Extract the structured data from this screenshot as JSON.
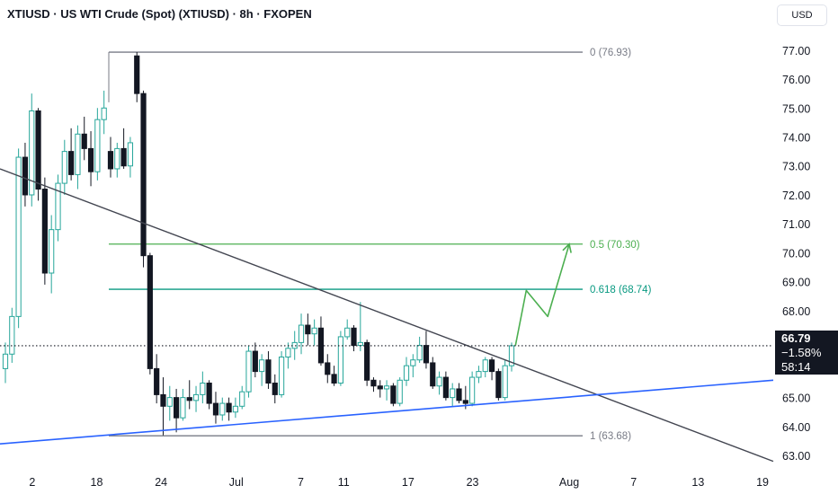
{
  "header": {
    "title": "XTIUSD · US WTI Crude (Spot) (XTIUSD) · 8h · FXOPEN",
    "currency": "USD"
  },
  "price_badge": {
    "price": "66.79",
    "change": "−1.58%",
    "countdown": "58:14"
  },
  "colors": {
    "up": "#26a69a",
    "down": "#131722",
    "trendline": "#434651",
    "support": "#2962ff",
    "fib_green": "#4caf50",
    "fib_teal": "#089981",
    "fib_gray": "#787b86",
    "projection": "#4caf50"
  },
  "chart_data": {
    "type": "candlestick",
    "symbol": "XTIUSD",
    "timeframe": "8h",
    "ylim": [
      62.6,
      77.8
    ],
    "y_ticks": [
      "77.00",
      "76.00",
      "75.00",
      "74.00",
      "73.00",
      "72.00",
      "71.00",
      "70.00",
      "69.00",
      "68.00",
      "67.00",
      "66.00",
      "65.00",
      "64.00",
      "63.00"
    ],
    "x_ticks": [
      {
        "label": "2",
        "date": "2025-06-12"
      },
      {
        "label": "18",
        "date": "2025-06-18"
      },
      {
        "label": "24",
        "date": "2025-06-24"
      },
      {
        "label": "Jul",
        "date": "2025-07-01"
      },
      {
        "label": "7",
        "date": "2025-07-07"
      },
      {
        "label": "11",
        "date": "2025-07-11"
      },
      {
        "label": "17",
        "date": "2025-07-17"
      },
      {
        "label": "23",
        "date": "2025-07-23"
      },
      {
        "label": "Aug",
        "date": "2025-08-01"
      },
      {
        "label": "7",
        "date": "2025-08-07"
      },
      {
        "label": "13",
        "date": "2025-08-13"
      },
      {
        "label": "19",
        "date": "2025-08-19"
      }
    ],
    "fib_levels": [
      {
        "label": "0 (76.93)",
        "value": 76.93
      },
      {
        "label": "0.5 (70.30)",
        "value": 70.3
      },
      {
        "label": "0.618 (68.74)",
        "value": 68.74
      },
      {
        "label": "1 (63.68)",
        "value": 63.68
      }
    ],
    "last_price": 66.79,
    "candles": [
      [
        66.0,
        66.9,
        65.5,
        66.5
      ],
      [
        66.5,
        68.1,
        66.2,
        67.8
      ],
      [
        67.8,
        73.6,
        67.4,
        73.3
      ],
      [
        73.3,
        73.8,
        71.6,
        72.0
      ],
      [
        72.0,
        75.5,
        71.6,
        74.9
      ],
      [
        74.9,
        75.0,
        71.8,
        72.2
      ],
      [
        72.2,
        72.6,
        68.9,
        69.3
      ],
      [
        69.3,
        71.3,
        68.6,
        70.8
      ],
      [
        70.8,
        72.7,
        70.4,
        72.4
      ],
      [
        72.4,
        73.9,
        72.0,
        73.5
      ],
      [
        73.5,
        74.3,
        72.5,
        72.7
      ],
      [
        72.7,
        74.4,
        72.2,
        74.1
      ],
      [
        74.1,
        74.7,
        73.2,
        73.6
      ],
      [
        73.6,
        74.2,
        72.3,
        72.8
      ],
      [
        72.8,
        75.0,
        72.5,
        74.6
      ],
      [
        74.6,
        75.6,
        74.1,
        75.0
      ],
      [
        73.5,
        74.0,
        72.6,
        72.9
      ],
      [
        72.9,
        73.8,
        72.6,
        73.6
      ],
      [
        73.6,
        74.3,
        72.9,
        73.0
      ],
      [
        73.0,
        74.0,
        72.6,
        73.8
      ],
      [
        76.8,
        76.93,
        75.2,
        75.5
      ],
      [
        75.5,
        75.6,
        69.5,
        69.9
      ],
      [
        69.9,
        70.0,
        65.8,
        66.0
      ],
      [
        66.0,
        66.5,
        64.8,
        65.1
      ],
      [
        65.1,
        65.7,
        63.7,
        64.7
      ],
      [
        64.7,
        65.4,
        64.2,
        65.0
      ],
      [
        65.0,
        65.3,
        63.8,
        64.3
      ],
      [
        64.3,
        65.3,
        64.2,
        65.0
      ],
      [
        65.0,
        65.6,
        64.6,
        64.9
      ],
      [
        64.9,
        65.4,
        64.5,
        65.1
      ],
      [
        65.1,
        65.9,
        64.8,
        65.5
      ],
      [
        65.5,
        65.6,
        64.6,
        64.8
      ],
      [
        64.8,
        65.2,
        64.1,
        64.4
      ],
      [
        64.4,
        65.0,
        64.2,
        64.8
      ],
      [
        64.8,
        65.0,
        64.2,
        64.5
      ],
      [
        64.5,
        65.0,
        64.3,
        64.7
      ],
      [
        64.7,
        65.4,
        64.6,
        65.2
      ],
      [
        65.2,
        66.8,
        65.0,
        66.6
      ],
      [
        66.6,
        66.9,
        65.7,
        65.9
      ],
      [
        65.9,
        66.5,
        65.4,
        66.3
      ],
      [
        66.3,
        66.6,
        65.3,
        65.5
      ],
      [
        65.5,
        65.8,
        64.8,
        65.1
      ],
      [
        65.1,
        66.6,
        65.0,
        66.4
      ],
      [
        66.4,
        66.9,
        66.0,
        66.7
      ],
      [
        66.7,
        67.3,
        66.3,
        66.9
      ],
      [
        66.9,
        67.9,
        66.5,
        67.5
      ],
      [
        67.5,
        67.9,
        66.8,
        67.2
      ],
      [
        67.2,
        67.7,
        66.8,
        67.4
      ],
      [
        67.4,
        67.8,
        66.1,
        66.2
      ],
      [
        66.2,
        66.5,
        65.5,
        65.8
      ],
      [
        65.8,
        66.1,
        65.4,
        65.5
      ],
      [
        65.5,
        67.3,
        65.4,
        67.1
      ],
      [
        67.1,
        67.7,
        67.0,
        67.4
      ],
      [
        67.4,
        67.5,
        66.6,
        66.8
      ],
      [
        66.8,
        68.3,
        66.6,
        66.9
      ],
      [
        66.9,
        67.0,
        65.4,
        65.6
      ],
      [
        65.6,
        65.7,
        65.2,
        65.4
      ],
      [
        65.4,
        65.6,
        65.0,
        65.3
      ],
      [
        65.3,
        65.6,
        64.9,
        65.4
      ],
      [
        65.4,
        65.5,
        64.7,
        64.8
      ],
      [
        64.8,
        65.7,
        64.7,
        65.6
      ],
      [
        65.6,
        66.4,
        65.4,
        66.1
      ],
      [
        66.1,
        66.5,
        65.7,
        66.3
      ],
      [
        66.3,
        67.1,
        66.2,
        66.8
      ],
      [
        66.8,
        67.3,
        66.0,
        66.2
      ],
      [
        66.2,
        66.4,
        65.3,
        65.4
      ],
      [
        65.4,
        65.9,
        65.1,
        65.7
      ],
      [
        65.7,
        65.9,
        64.9,
        65.0
      ],
      [
        65.0,
        65.5,
        64.7,
        65.3
      ],
      [
        65.3,
        65.5,
        64.8,
        64.9
      ],
      [
        64.9,
        65.4,
        64.6,
        64.8
      ],
      [
        64.8,
        65.9,
        64.7,
        65.7
      ],
      [
        65.7,
        66.1,
        65.5,
        65.9
      ],
      [
        65.9,
        66.4,
        65.7,
        66.3
      ],
      [
        66.3,
        66.4,
        65.6,
        65.9
      ],
      [
        65.9,
        66.0,
        64.9,
        65.0
      ],
      [
        65.0,
        66.3,
        64.9,
        66.1
      ],
      [
        66.1,
        66.9,
        65.9,
        66.79
      ]
    ],
    "overlays": {
      "descending_trendline": [
        {
          "x": "2025-06-09",
          "y": 72.9
        },
        {
          "x": "2025-08-20",
          "y": 62.8
        }
      ],
      "ascending_support": [
        {
          "x": "2025-06-09",
          "y": 63.4
        },
        {
          "x": "2025-08-20",
          "y": 65.6
        }
      ],
      "projected_path": [
        {
          "x": "2025-07-27",
          "y": 66.8
        },
        {
          "x": "2025-07-28",
          "y": 68.7
        },
        {
          "x": "2025-07-30",
          "y": 67.8
        },
        {
          "x": "2025-08-01",
          "y": 70.3
        }
      ]
    }
  }
}
